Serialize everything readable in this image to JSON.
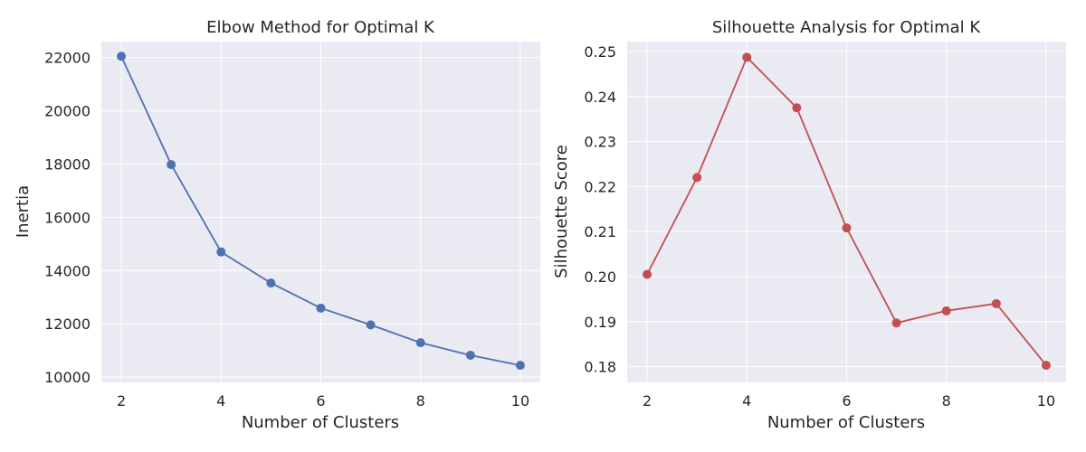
{
  "chart_data": [
    {
      "type": "line",
      "title": "Elbow Method for Optimal K",
      "xlabel": "Number of Clusters",
      "ylabel": "Inertia",
      "x": [
        2,
        3,
        4,
        5,
        6,
        7,
        8,
        9,
        10
      ],
      "series": [
        {
          "values": [
            22050,
            17980,
            14700,
            13530,
            12590,
            11960,
            11290,
            10820,
            10440
          ],
          "color": "#4c72b0"
        }
      ],
      "xlim": [
        1.6,
        10.4
      ],
      "ylim": [
        9800,
        22600
      ],
      "xticks": [
        2,
        4,
        6,
        8,
        10
      ],
      "yticks": [
        10000,
        12000,
        14000,
        16000,
        18000,
        20000,
        22000
      ],
      "grid": true
    },
    {
      "type": "line",
      "title": "Silhouette Analysis for Optimal K",
      "xlabel": "Number of Clusters",
      "ylabel": "Silhouette Score",
      "x": [
        2,
        3,
        4,
        5,
        6,
        7,
        8,
        9,
        10
      ],
      "series": [
        {
          "values": [
            0.2005,
            0.222,
            0.2487,
            0.2375,
            0.2108,
            0.1897,
            0.1924,
            0.194,
            0.1803
          ],
          "color": "#c44e52"
        }
      ],
      "xlim": [
        1.6,
        10.4
      ],
      "ylim": [
        0.1765,
        0.2522
      ],
      "xticks": [
        2,
        4,
        6,
        8,
        10
      ],
      "yticks": [
        0.18,
        0.19,
        0.2,
        0.21,
        0.22,
        0.23,
        0.24,
        0.25
      ],
      "ytick_decimals": 2,
      "grid": true
    }
  ]
}
